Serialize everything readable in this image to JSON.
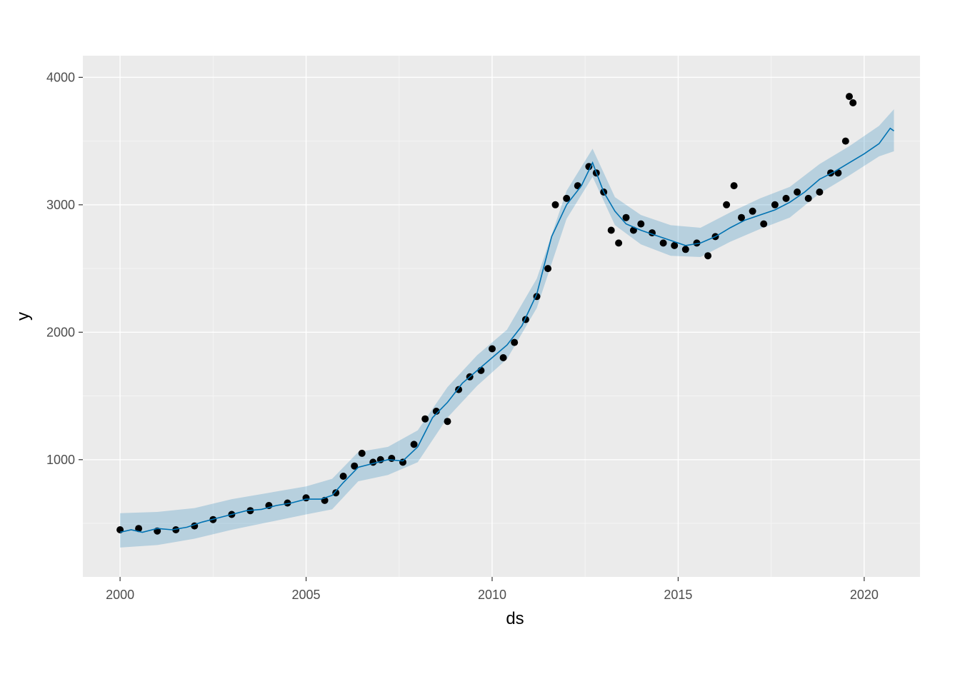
{
  "chart_data": {
    "type": "scatter",
    "xlabel": "ds",
    "ylabel": "y",
    "xlim": [
      1999,
      2021.5
    ],
    "ylim": [
      80,
      4170
    ],
    "x_ticks": [
      2000,
      2005,
      2010,
      2015,
      2020
    ],
    "x_tick_labels": [
      "2000",
      "2005",
      "2010",
      "2015",
      "2020"
    ],
    "y_ticks": [
      1000,
      2000,
      3000,
      4000
    ],
    "y_tick_labels": [
      "1000",
      "2000",
      "3000",
      "4000"
    ],
    "grid": true,
    "legend": "none",
    "colors": {
      "panel": "#ebebeb",
      "grid_major": "#ffffff",
      "grid_minor": "#f5f5f5",
      "points": "#000000",
      "forecast_line": "#0072b2",
      "interval_band": "#0072b2",
      "tick_text": "#4d4d4d",
      "label_text": "#000000"
    },
    "series": [
      {
        "kind": "observed",
        "x": [
          2000.0,
          2000.5,
          2001.0,
          2001.5,
          2002.0,
          2002.5,
          2003.0,
          2003.5,
          2004.0,
          2004.5,
          2005.0,
          2005.5,
          2005.8,
          2006.0,
          2006.3,
          2006.5,
          2006.8,
          2007.0,
          2007.3,
          2007.6,
          2007.9,
          2008.2,
          2008.5,
          2008.8,
          2009.1,
          2009.4,
          2009.7,
          2010.0,
          2010.3,
          2010.6,
          2010.9,
          2011.2,
          2011.5,
          2011.7,
          2012.0,
          2012.3,
          2012.6,
          2012.8,
          2013.0,
          2013.2,
          2013.4,
          2013.6,
          2013.8,
          2014.0,
          2014.3,
          2014.6,
          2014.9,
          2015.2,
          2015.5,
          2015.8,
          2016.0,
          2016.3,
          2016.5,
          2016.7,
          2017.0,
          2017.3,
          2017.6,
          2017.9,
          2018.2,
          2018.5,
          2018.8,
          2019.1,
          2019.3,
          2019.5,
          2019.6,
          2019.7
        ],
        "y": [
          450,
          460,
          440,
          450,
          480,
          530,
          570,
          600,
          640,
          660,
          700,
          680,
          740,
          870,
          950,
          1050,
          980,
          1000,
          1010,
          980,
          1120,
          1320,
          1380,
          1300,
          1550,
          1650,
          1700,
          1870,
          1800,
          1920,
          2100,
          2280,
          2500,
          3000,
          3050,
          3150,
          3300,
          3250,
          3100,
          2800,
          2700,
          2900,
          2800,
          2850,
          2780,
          2700,
          2680,
          2650,
          2700,
          2600,
          2750,
          3000,
          3150,
          2900,
          2950,
          2850,
          3000,
          3050,
          3100,
          3050,
          3100,
          3250,
          3250,
          3500,
          3850,
          3800
        ]
      },
      {
        "kind": "forecast",
        "x": [
          2000.0,
          2000.3,
          2000.6,
          2001.0,
          2001.4,
          2001.8,
          2002.2,
          2002.6,
          2003.0,
          2003.4,
          2003.8,
          2004.2,
          2004.6,
          2005.0,
          2005.4,
          2005.7,
          2006.0,
          2006.4,
          2006.8,
          2007.2,
          2007.6,
          2008.0,
          2008.4,
          2008.8,
          2009.2,
          2009.6,
          2010.0,
          2010.4,
          2010.8,
          2011.2,
          2011.6,
          2012.0,
          2012.4,
          2012.7,
          2013.0,
          2013.3,
          2013.6,
          2014.0,
          2014.4,
          2014.8,
          2015.2,
          2015.6,
          2016.0,
          2016.4,
          2016.8,
          2017.2,
          2017.6,
          2018.0,
          2018.4,
          2018.8,
          2019.2,
          2019.6,
          2020.0,
          2020.4,
          2020.7,
          2020.8
        ],
        "y": [
          430,
          450,
          430,
          460,
          450,
          470,
          510,
          540,
          570,
          600,
          610,
          640,
          660,
          690,
          690,
          720,
          820,
          940,
          970,
          1000,
          990,
          1100,
          1330,
          1450,
          1600,
          1700,
          1800,
          1900,
          2050,
          2300,
          2750,
          3000,
          3150,
          3330,
          3100,
          2950,
          2850,
          2800,
          2760,
          2720,
          2680,
          2700,
          2750,
          2820,
          2880,
          2920,
          2960,
          3020,
          3100,
          3200,
          3260,
          3330,
          3400,
          3480,
          3600,
          3580
        ]
      },
      {
        "kind": "interval",
        "x": [
          2000.0,
          2001.0,
          2002.0,
          2003.0,
          2004.0,
          2005.0,
          2005.7,
          2006.4,
          2007.2,
          2008.0,
          2008.8,
          2009.6,
          2010.4,
          2011.2,
          2012.0,
          2012.7,
          2013.3,
          2014.0,
          2014.8,
          2015.6,
          2016.4,
          2017.2,
          2018.0,
          2018.8,
          2019.6,
          2020.4,
          2020.8
        ],
        "upper": [
          580,
          590,
          620,
          690,
          740,
          790,
          850,
          1060,
          1100,
          1230,
          1570,
          1820,
          2020,
          2420,
          3110,
          3440,
          3060,
          2920,
          2840,
          2820,
          2940,
          3050,
          3140,
          3320,
          3460,
          3620,
          3750
        ],
        "lower": [
          310,
          330,
          380,
          450,
          510,
          570,
          610,
          830,
          880,
          980,
          1330,
          1580,
          1790,
          2190,
          2890,
          3220,
          2840,
          2690,
          2600,
          2590,
          2710,
          2810,
          2900,
          3090,
          3230,
          3380,
          3420
        ]
      }
    ]
  }
}
